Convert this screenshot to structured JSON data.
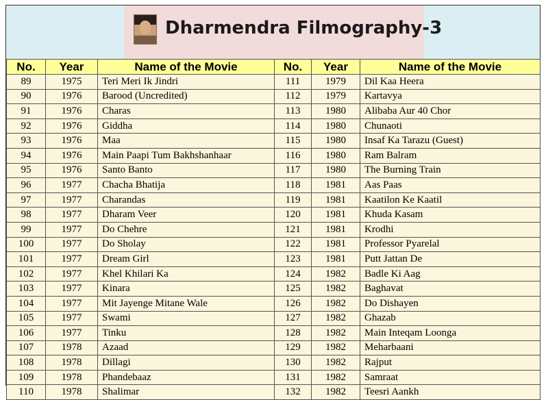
{
  "title": "Dharmendra Filmography-3",
  "columns": [
    "No.",
    "Year",
    "Name of the Movie",
    "No.",
    "Year",
    "Name of the Movie"
  ],
  "colors": {
    "header_bg": "#dbeef4",
    "title_bg": "#f2dcdb",
    "column_header_bg": "#ffff99",
    "cell_bg": "#fbf6dc"
  },
  "rows": [
    {
      "n1": "89",
      "y1": "1975",
      "m1": "Teri Meri Ik Jindri",
      "n2": "111",
      "y2": "1979",
      "m2": "Dil Kaa Heera"
    },
    {
      "n1": "90",
      "y1": "1976",
      "m1": "Barood (Uncredited)",
      "n2": "112",
      "y2": "1979",
      "m2": "Kartavya"
    },
    {
      "n1": "91",
      "y1": "1976",
      "m1": "Charas",
      "n2": "113",
      "y2": "1980",
      "m2": "Alibaba Aur 40 Chor"
    },
    {
      "n1": "92",
      "y1": "1976",
      "m1": "Giddha",
      "n2": "114",
      "y2": "1980",
      "m2": "Chunaoti"
    },
    {
      "n1": "93",
      "y1": "1976",
      "m1": "Maa",
      "n2": "115",
      "y2": "1980",
      "m2": "Insaf Ka Tarazu (Guest)"
    },
    {
      "n1": "94",
      "y1": "1976",
      "m1": "Main Paapi Tum Bakhshanhaar",
      "n2": "116",
      "y2": "1980",
      "m2": "Ram Balram"
    },
    {
      "n1": "95",
      "y1": "1976",
      "m1": "Santo Banto",
      "n2": "117",
      "y2": "1980",
      "m2": "The Burning Train"
    },
    {
      "n1": "96",
      "y1": "1977",
      "m1": "Chacha Bhatija",
      "n2": "118",
      "y2": "1981",
      "m2": "Aas Paas"
    },
    {
      "n1": "97",
      "y1": "1977",
      "m1": "Charandas",
      "n2": "119",
      "y2": "1981",
      "m2": "Kaatilon Ke Kaatil"
    },
    {
      "n1": "98",
      "y1": "1977",
      "m1": "Dharam Veer",
      "n2": "120",
      "y2": "1981",
      "m2": "Khuda Kasam"
    },
    {
      "n1": "99",
      "y1": "1977",
      "m1": "Do Chehre",
      "n2": "121",
      "y2": "1981",
      "m2": "Krodhi"
    },
    {
      "n1": "100",
      "y1": "1977",
      "m1": "Do Sholay",
      "n2": "122",
      "y2": "1981",
      "m2": "Professor Pyarelal"
    },
    {
      "n1": "101",
      "y1": "1977",
      "m1": "Dream Girl",
      "n2": "123",
      "y2": "1981",
      "m2": "Putt Jattan De"
    },
    {
      "n1": "102",
      "y1": "1977",
      "m1": "Khel Khilari Ka",
      "n2": "124",
      "y2": "1982",
      "m2": "Badle Ki Aag"
    },
    {
      "n1": "103",
      "y1": "1977",
      "m1": "Kinara",
      "n2": "125",
      "y2": "1982",
      "m2": "Baghavat"
    },
    {
      "n1": "104",
      "y1": "1977",
      "m1": "Mit Jayenge Mitane Wale",
      "n2": "126",
      "y2": "1982",
      "m2": "Do Dishayen"
    },
    {
      "n1": "105",
      "y1": "1977",
      "m1": "Swami",
      "n2": "127",
      "y2": "1982",
      "m2": "Ghazab"
    },
    {
      "n1": "106",
      "y1": "1977",
      "m1": "Tinku",
      "n2": "128",
      "y2": "1982",
      "m2": "Main Inteqam Loonga"
    },
    {
      "n1": "107",
      "y1": "1978",
      "m1": "Azaad",
      "n2": "129",
      "y2": "1982",
      "m2": "Meharbaani"
    },
    {
      "n1": "108",
      "y1": "1978",
      "m1": "Dillagi",
      "n2": "130",
      "y2": "1982",
      "m2": "Rajput"
    },
    {
      "n1": "109",
      "y1": "1978",
      "m1": "Phandebaaz",
      "n2": "131",
      "y2": "1982",
      "m2": "Samraat"
    },
    {
      "n1": "110",
      "y1": "1978",
      "m1": "Shalimar",
      "n2": "132",
      "y2": "1982",
      "m2": "Teesri Aankh"
    }
  ]
}
